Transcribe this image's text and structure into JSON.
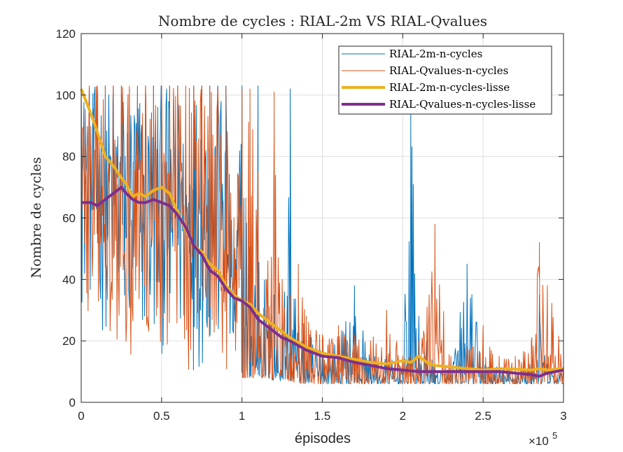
{
  "chart_data": {
    "type": "line",
    "title": "Nombre de cycles : RIAL-2m VS RIAL-Qvalues",
    "xlabel": "épisodes",
    "ylabel": "Nombre de cycles",
    "x_exponent_label": "×10",
    "x_exponent_power": "5",
    "xlim": [
      0,
      300000
    ],
    "ylim": [
      0,
      120
    ],
    "x_ticks": [
      0,
      50000,
      100000,
      150000,
      200000,
      250000,
      300000
    ],
    "x_tick_labels": [
      "0",
      "0.5",
      "1",
      "1.5",
      "2",
      "2.5",
      "3"
    ],
    "y_ticks": [
      0,
      20,
      40,
      60,
      80,
      100,
      120
    ],
    "y_tick_labels": [
      "0",
      "20",
      "40",
      "60",
      "80",
      "100",
      "120"
    ],
    "grid": true,
    "legend_position": "top-right",
    "series": [
      {
        "name": "RIAL-2m-n-cycles",
        "color": "#0072BD",
        "line_width": "thin",
        "style": "noisy",
        "x": [
          0,
          5000,
          10000,
          15000,
          20000,
          25000,
          30000,
          35000,
          40000,
          45000,
          50000,
          55000,
          60000,
          65000,
          70000,
          75000,
          80000,
          85000,
          90000,
          95000,
          100000,
          105000,
          110000,
          115000,
          120000,
          125000,
          130000,
          135000,
          140000,
          150000,
          160000,
          170000,
          180000,
          190000,
          200000,
          205000,
          210000,
          220000,
          230000,
          240000,
          250000,
          260000,
          270000,
          280000,
          285000,
          290000,
          300000
        ],
        "y": [
          103,
          103,
          103,
          103,
          103,
          103,
          102,
          103,
          103,
          103,
          103,
          103,
          103,
          90,
          103,
          103,
          103,
          103,
          103,
          40,
          103,
          60,
          103,
          30,
          35,
          30,
          102,
          28,
          25,
          22,
          20,
          38,
          15,
          15,
          12,
          95,
          28,
          12,
          12,
          45,
          15,
          12,
          12,
          14,
          35,
          12,
          10
        ],
        "band_lower": [
          30,
          28,
          22,
          22,
          20,
          18,
          15,
          15,
          12,
          12,
          15,
          12,
          12,
          12,
          10,
          10,
          10,
          10,
          10,
          8,
          8,
          8,
          8,
          8,
          7,
          7,
          7,
          6,
          6,
          6,
          6,
          6,
          6,
          6,
          6,
          6,
          6,
          6,
          6,
          6,
          6,
          6,
          6,
          6,
          6,
          6,
          6
        ]
      },
      {
        "name": "RIAL-Qvalues-n-cycles",
        "color": "#D95319",
        "line_width": "thin",
        "style": "noisy",
        "x": [
          0,
          5000,
          10000,
          15000,
          20000,
          25000,
          30000,
          35000,
          40000,
          45000,
          50000,
          55000,
          60000,
          65000,
          70000,
          75000,
          80000,
          85000,
          90000,
          95000,
          100000,
          105000,
          110000,
          115000,
          120000,
          125000,
          130000,
          135000,
          140000,
          150000,
          160000,
          170000,
          180000,
          190000,
          200000,
          205000,
          210000,
          220000,
          230000,
          240000,
          250000,
          260000,
          270000,
          280000,
          285000,
          290000,
          300000
        ],
        "y": [
          103,
          103,
          103,
          103,
          103,
          103,
          103,
          103,
          103,
          103,
          103,
          103,
          103,
          103,
          103,
          103,
          103,
          102,
          103,
          60,
          102,
          102,
          75,
          40,
          101,
          40,
          35,
          45,
          28,
          22,
          25,
          22,
          20,
          30,
          15,
          15,
          20,
          58,
          15,
          18,
          25,
          15,
          15,
          20,
          52,
          38,
          21
        ],
        "band_lower": [
          40,
          13,
          16,
          20,
          20,
          18,
          15,
          15,
          12,
          12,
          12,
          12,
          12,
          10,
          10,
          10,
          9,
          9,
          9,
          8,
          8,
          8,
          8,
          8,
          7,
          7,
          7,
          6,
          6,
          6,
          6,
          6,
          6,
          6,
          6,
          6,
          6,
          6,
          6,
          6,
          6,
          6,
          6,
          6,
          6,
          6,
          6
        ]
      },
      {
        "name": "RIAL-2m-n-cycles-lisse",
        "color": "#EDB120",
        "line_width": "thick",
        "x": [
          0,
          3000,
          6000,
          10000,
          15000,
          20000,
          25000,
          28000,
          32000,
          36000,
          40000,
          45000,
          50000,
          55000,
          60000,
          65000,
          70000,
          75000,
          80000,
          85000,
          90000,
          95000,
          100000,
          105000,
          110000,
          115000,
          120000,
          125000,
          130000,
          140000,
          150000,
          160000,
          170000,
          180000,
          190000,
          200000,
          205000,
          210000,
          215000,
          220000,
          230000,
          240000,
          250000,
          260000,
          270000,
          280000,
          285000,
          290000,
          300000
        ],
        "y": [
          102,
          98,
          94,
          88,
          80,
          77,
          73,
          71,
          67,
          68,
          67,
          69,
          70,
          68,
          62,
          56,
          51,
          49,
          45,
          43,
          38,
          35,
          33,
          32,
          29,
          27,
          25,
          23,
          21,
          18,
          16,
          15,
          14,
          13,
          12.5,
          13.5,
          13,
          15,
          13,
          12,
          11.5,
          11,
          10.5,
          11,
          10.8,
          10.5,
          11,
          10.5,
          11
        ]
      },
      {
        "name": "RIAL-Qvalues-n-cycles-lisse",
        "color": "#7E2F8E",
        "line_width": "thick",
        "x": [
          0,
          3000,
          6000,
          10000,
          15000,
          20000,
          25000,
          28000,
          32000,
          36000,
          40000,
          45000,
          50000,
          55000,
          60000,
          65000,
          70000,
          75000,
          80000,
          85000,
          90000,
          95000,
          100000,
          105000,
          110000,
          115000,
          120000,
          125000,
          130000,
          140000,
          150000,
          160000,
          170000,
          180000,
          190000,
          200000,
          210000,
          220000,
          230000,
          240000,
          250000,
          260000,
          270000,
          280000,
          285000,
          290000,
          300000
        ],
        "y": [
          65,
          65,
          65,
          64,
          66,
          68,
          70,
          68,
          66,
          65,
          65,
          66,
          65,
          64,
          61,
          57,
          51,
          48,
          43,
          41,
          37,
          34,
          33,
          31,
          27,
          25,
          23,
          21,
          20,
          17,
          15,
          14.5,
          13,
          12,
          11,
          10.5,
          10,
          10,
          10,
          10,
          10,
          10,
          9.5,
          9,
          8.5,
          9.5,
          10.5
        ]
      }
    ]
  }
}
